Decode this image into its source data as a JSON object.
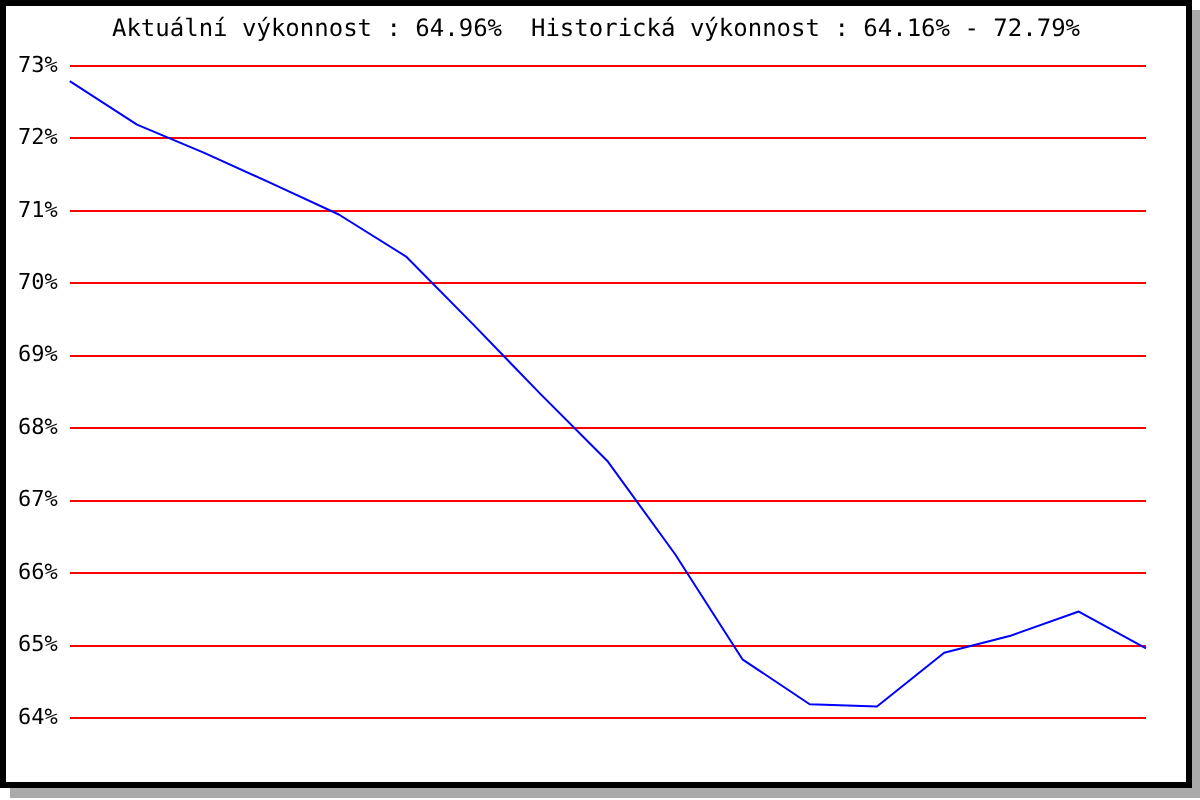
{
  "chart_data": {
    "type": "line",
    "title": "Aktuální výkonnost : 64.96%  Historická výkonnost : 64.16% - 72.79%",
    "categories": [
      null,
      null,
      null,
      null,
      null,
      null,
      null,
      null,
      null,
      null,
      null,
      null,
      null,
      null,
      null,
      null,
      null
    ],
    "series": [
      {
        "color": "#0000ff",
        "values": [
          72.79,
          72.19,
          71.8,
          71.38,
          70.95,
          70.37,
          69.43,
          68.47,
          67.54,
          66.26,
          64.81,
          64.19,
          64.16,
          64.9,
          65.14,
          65.47,
          64.96
        ]
      }
    ],
    "ylim": [
      64,
      73
    ],
    "yticks": [
      {
        "value": 64,
        "label": "64%"
      },
      {
        "value": 65,
        "label": "65%"
      },
      {
        "value": 66,
        "label": "66%"
      },
      {
        "value": 67,
        "label": "67%"
      },
      {
        "value": 68,
        "label": "68%"
      },
      {
        "value": 69,
        "label": "69%"
      },
      {
        "value": 70,
        "label": "70%"
      },
      {
        "value": 71,
        "label": "71%"
      },
      {
        "value": 72,
        "label": "72%"
      },
      {
        "value": 73,
        "label": "73%"
      }
    ],
    "grid": "y",
    "tick_labels": "y",
    "marker": "none",
    "line_style": "solid",
    "legend": false
  }
}
